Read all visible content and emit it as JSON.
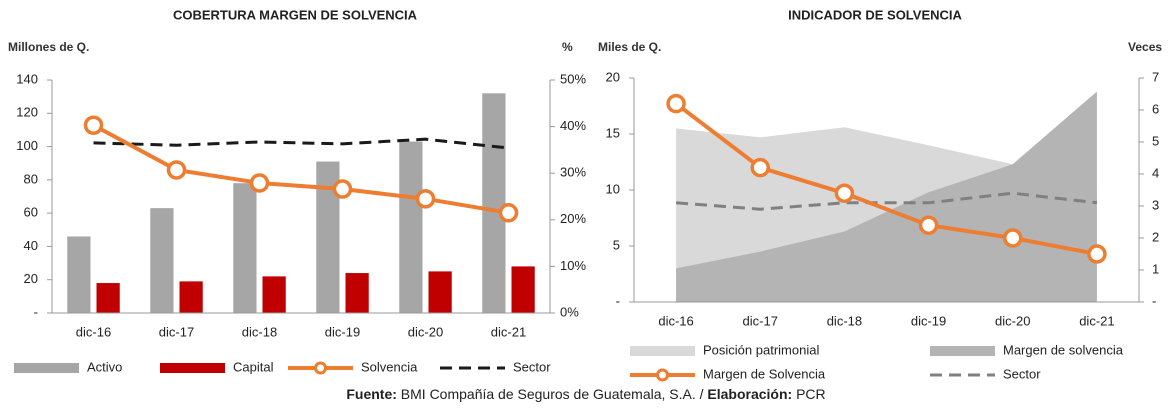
{
  "chart_data": [
    {
      "type": "bar-line",
      "title": "COBERTURA MARGEN DE SOLVENCIA",
      "y_label": "Millones de Q.",
      "y2_label": "%",
      "categories": [
        "dic-16",
        "dic-17",
        "dic-18",
        "dic-19",
        "dic-20",
        "dic-21"
      ],
      "ylim": [
        0,
        140
      ],
      "yticks": [
        {
          "value": 0,
          "label": "-"
        },
        20,
        40,
        60,
        80,
        100,
        120,
        140
      ],
      "y2lim": [
        0,
        50
      ],
      "y2ticks": [
        {
          "value": 0,
          "label": "0%"
        },
        {
          "value": 10,
          "label": "10%"
        },
        {
          "value": 20,
          "label": "20%"
        },
        {
          "value": 30,
          "label": "30%"
        },
        {
          "value": 40,
          "label": "40%"
        },
        {
          "value": 50,
          "label": "50%"
        }
      ],
      "series": [
        {
          "name": "Activo",
          "kind": "bar",
          "color": "#a6a6a6",
          "values": [
            46,
            63,
            78,
            91,
            103,
            132
          ]
        },
        {
          "name": "Capital",
          "kind": "bar",
          "color": "#c00000",
          "values": [
            18,
            19,
            22,
            24,
            25,
            28
          ]
        },
        {
          "name": "Solvencia",
          "kind": "line-marker",
          "color": "#ed7d31",
          "axis": "y2",
          "values": [
            40.3,
            30.7,
            27.9,
            26.6,
            24.5,
            21.5
          ]
        },
        {
          "name": "Sector",
          "kind": "dash",
          "color": "#1a1a1a",
          "axis": "y2",
          "values": [
            36.5,
            36.0,
            36.7,
            36.3,
            37.3,
            35.4
          ]
        }
      ]
    },
    {
      "type": "area-line",
      "title": "INDICADOR DE SOLVENCIA",
      "y_label": "Miles de Q.",
      "y2_label": "Veces",
      "categories": [
        "dic-16",
        "dic-17",
        "dic-18",
        "dic-19",
        "dic-20",
        "dic-21"
      ],
      "ylim": [
        0,
        20
      ],
      "yticks": [
        {
          "value": 0,
          "label": "-"
        },
        5,
        10,
        15,
        20
      ],
      "y2lim": [
        0,
        7
      ],
      "y2ticks": [
        {
          "value": 0,
          "label": "-"
        },
        1,
        2,
        3,
        4,
        5,
        6,
        7
      ],
      "series": [
        {
          "name": "Posición patrimonial",
          "kind": "area",
          "color": "#d9d9d9",
          "values": [
            15.5,
            14.7,
            15.6,
            14.0,
            12.3,
            10.0
          ]
        },
        {
          "name": "Margen de solvencia",
          "kind": "area",
          "color": "#b4b4b4",
          "values": [
            3.0,
            4.5,
            6.3,
            9.8,
            12.3,
            18.8
          ]
        },
        {
          "name": "Margen de Solvencia",
          "kind": "line-marker",
          "color": "#ed7d31",
          "axis": "y2",
          "values": [
            6.2,
            4.2,
            3.4,
            2.4,
            2.0,
            1.5
          ]
        },
        {
          "name": "Sector",
          "kind": "dash",
          "color": "#808080",
          "axis": "y2",
          "values": [
            3.1,
            2.9,
            3.1,
            3.1,
            3.4,
            3.1
          ]
        }
      ]
    }
  ],
  "footer": {
    "source_label": "Fuente:",
    "source": " BMI Compañía de Seguros de Guatemala, S.A. / ",
    "author_label": "Elaboración:",
    "author": " PCR"
  }
}
